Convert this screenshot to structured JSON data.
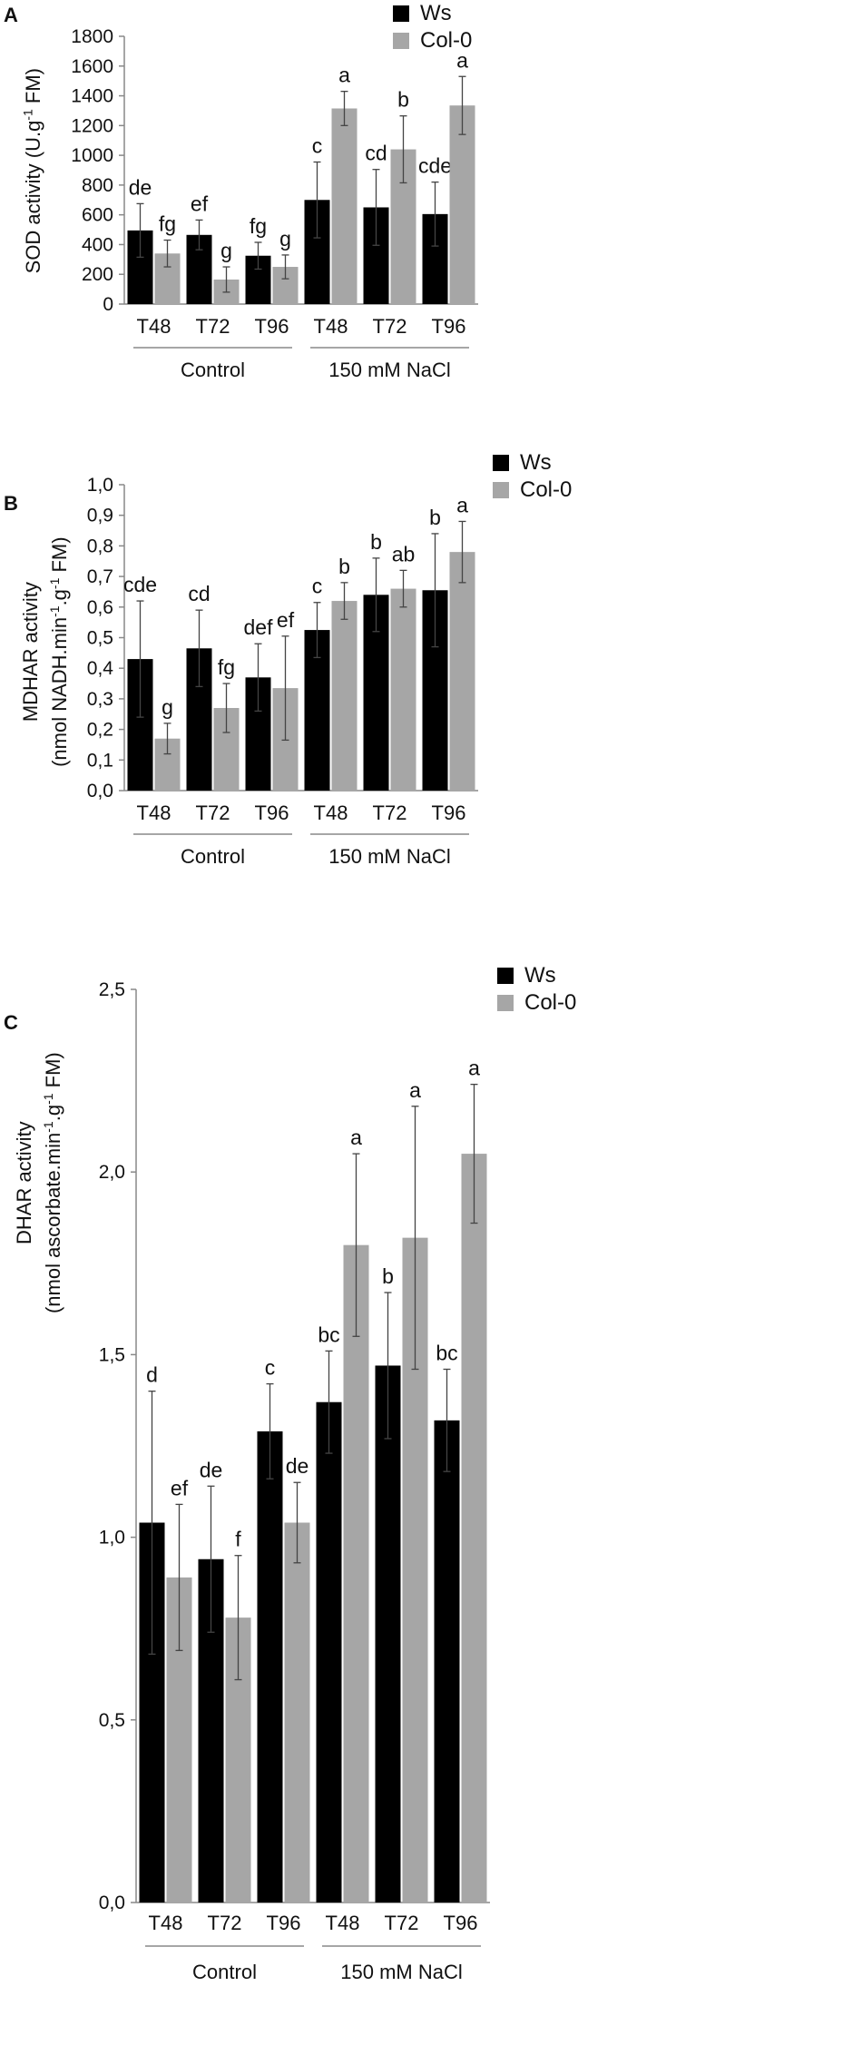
{
  "colors": {
    "ws": "#000000",
    "col0": "#a6a6a6",
    "axis": "#888888",
    "errorbar": "#444444"
  },
  "legend": {
    "ws": "Ws",
    "col0": "Col-0"
  },
  "chart_data": [
    {
      "panel": "A",
      "type": "bar",
      "ylabel_html": "SOD activity (U.g<tspan baseline-shift='super' font-size='15'>-1</tspan> FM)",
      "ylabel": "SOD activity (U.g-1 FM)",
      "ylabel_line2": "",
      "ylim": [
        0,
        1800
      ],
      "yticks": [
        "0",
        "200",
        "400",
        "600",
        "800",
        "1000",
        "1200",
        "1400",
        "1600",
        "1800"
      ],
      "ytick_values": [
        0,
        200,
        400,
        600,
        800,
        1000,
        1200,
        1400,
        1600,
        1800
      ],
      "categories": [
        "T48",
        "T72",
        "T96",
        "T48",
        "T72",
        "T96"
      ],
      "groups": [
        "Control",
        "150 mM NaCl"
      ],
      "series": [
        {
          "name": "Ws",
          "values": [
            495,
            465,
            325,
            700,
            650,
            605
          ],
          "errors": [
            180,
            100,
            90,
            255,
            255,
            215
          ],
          "letters": [
            "de",
            "ef",
            "fg",
            "c",
            "cd",
            "cde"
          ]
        },
        {
          "name": "Col-0",
          "values": [
            340,
            165,
            250,
            1315,
            1040,
            1335
          ],
          "errors": [
            90,
            85,
            80,
            115,
            225,
            195
          ],
          "letters": [
            "fg",
            "g",
            "g",
            "a",
            "b",
            "a"
          ]
        }
      ]
    },
    {
      "panel": "B",
      "type": "bar",
      "ylabel": "MDHAR activity",
      "ylabel_line2": "(nmol NADH.min-1.g-1 FM)",
      "ylim": [
        0,
        1.0
      ],
      "yticks": [
        "0,0",
        "0,1",
        "0,2",
        "0,3",
        "0,4",
        "0,5",
        "0,6",
        "0,7",
        "0,8",
        "0,9",
        "1,0"
      ],
      "ytick_values": [
        0,
        0.1,
        0.2,
        0.3,
        0.4,
        0.5,
        0.6,
        0.7,
        0.8,
        0.9,
        1.0
      ],
      "categories": [
        "T48",
        "T72",
        "T96",
        "T48",
        "T72",
        "T96"
      ],
      "groups": [
        "Control",
        "150 mM NaCl"
      ],
      "series": [
        {
          "name": "Ws",
          "values": [
            0.43,
            0.465,
            0.37,
            0.525,
            0.64,
            0.655
          ],
          "errors": [
            0.19,
            0.125,
            0.11,
            0.09,
            0.12,
            0.185
          ],
          "letters": [
            "cde",
            "cd",
            "def",
            "c",
            "b",
            "b"
          ]
        },
        {
          "name": "Col-0",
          "values": [
            0.17,
            0.27,
            0.335,
            0.62,
            0.66,
            0.78
          ],
          "errors": [
            0.05,
            0.08,
            0.17,
            0.06,
            0.06,
            0.1
          ],
          "letters": [
            "g",
            "fg",
            "ef",
            "b",
            "ab",
            "a"
          ]
        }
      ]
    },
    {
      "panel": "C",
      "type": "bar",
      "ylabel": "DHAR activity",
      "ylabel_line2": "(nmol ascorbate.min-1.g-1 FM)",
      "ylim": [
        0,
        2.5
      ],
      "yticks": [
        "0,0",
        "0,5",
        "1,0",
        "1,5",
        "2,0",
        "2,5"
      ],
      "ytick_values": [
        0,
        0.5,
        1.0,
        1.5,
        2.0,
        2.5
      ],
      "categories": [
        "T48",
        "T72",
        "T96",
        "T48",
        "T72",
        "T96"
      ],
      "groups": [
        "Control",
        "150 mM NaCl"
      ],
      "series": [
        {
          "name": "Ws",
          "values": [
            1.04,
            0.94,
            1.29,
            1.37,
            1.47,
            1.32
          ],
          "errors": [
            0.36,
            0.2,
            0.13,
            0.14,
            0.2,
            0.14
          ],
          "letters": [
            "d",
            "de",
            "c",
            "bc",
            "b",
            "bc"
          ]
        },
        {
          "name": "Col-0",
          "values": [
            0.89,
            0.78,
            1.04,
            1.8,
            1.82,
            2.05
          ],
          "errors": [
            0.2,
            0.17,
            0.11,
            0.25,
            0.36,
            0.19
          ],
          "letters": [
            "ef",
            "f",
            "de",
            "a",
            "a",
            "a"
          ]
        }
      ]
    }
  ]
}
